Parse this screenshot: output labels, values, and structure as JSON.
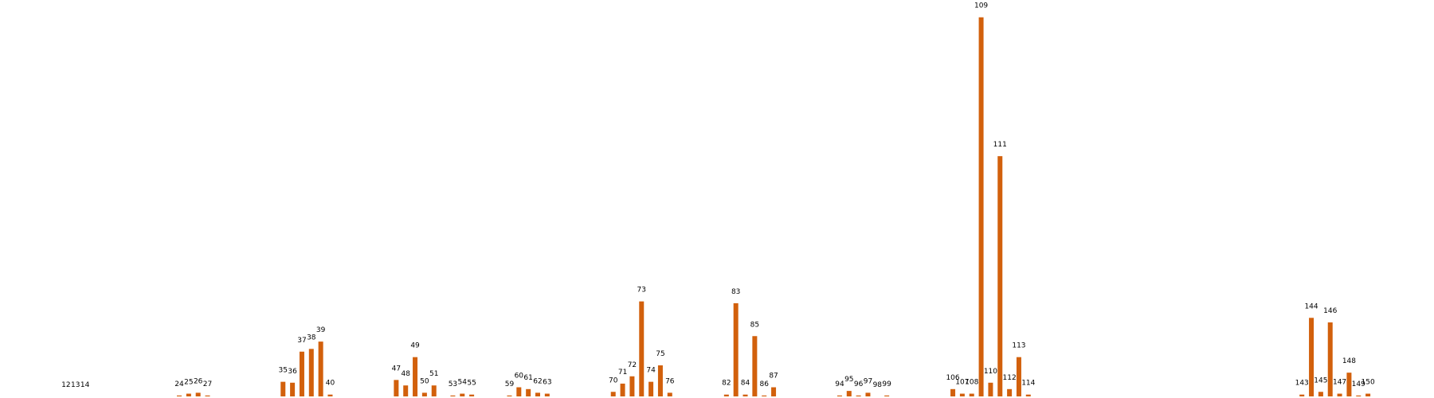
{
  "chart_data": {
    "type": "bar",
    "color": "#d2600c",
    "x": [
      12,
      13,
      14,
      24,
      25,
      26,
      27,
      35,
      36,
      37,
      38,
      39,
      40,
      47,
      48,
      49,
      50,
      51,
      53,
      54,
      55,
      59,
      60,
      61,
      62,
      63,
      70,
      71,
      72,
      73,
      74,
      75,
      76,
      82,
      83,
      84,
      85,
      86,
      87,
      94,
      95,
      96,
      97,
      98,
      99,
      106,
      107,
      108,
      109,
      110,
      111,
      112,
      113,
      114,
      143,
      144,
      145,
      146,
      147,
      148,
      149,
      150
    ],
    "values": [
      0,
      0,
      0,
      1,
      3,
      4,
      1,
      16,
      15,
      49,
      52,
      60,
      2,
      18,
      12,
      43,
      4,
      12,
      1,
      3,
      2,
      1,
      10,
      8,
      4,
      3,
      5,
      14,
      22,
      104,
      16,
      34,
      4,
      2,
      102,
      2,
      66,
      1,
      10,
      1,
      6,
      1,
      4,
      0,
      1,
      8,
      3,
      3,
      415,
      15,
      263,
      8,
      43,
      2,
      2,
      86,
      5,
      81,
      3,
      26,
      1,
      3
    ],
    "xlim": [
      5,
      157
    ],
    "ylim": [
      0,
      420
    ]
  }
}
